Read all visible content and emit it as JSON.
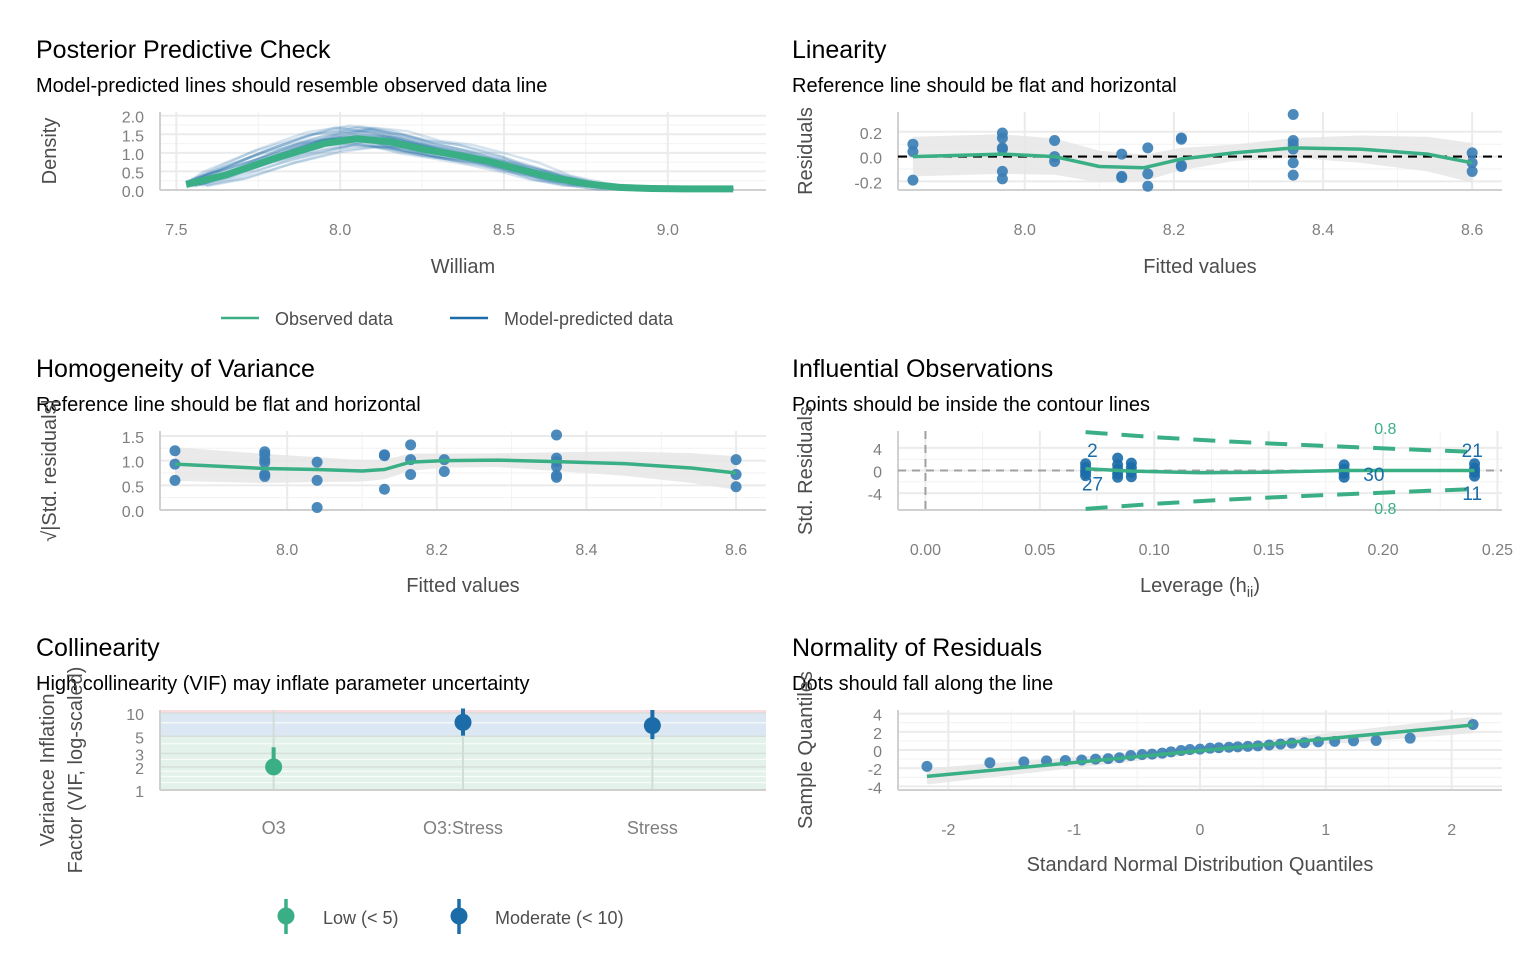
{
  "colors": {
    "observed": "#3aaf85",
    "predicted": "#1b6ca8",
    "points": "#3a7db5",
    "ribbon": "#e6e6e6",
    "grid": "#ebebeb",
    "zone_low": "#e3f2eb",
    "zone_moderate": "#dbe7f2",
    "zone_high": "#f8dcdf"
  },
  "chart_data": [
    {
      "id": "ppc",
      "type": "line",
      "title": "Posterior Predictive Check",
      "subtitle": "Model-predicted lines should resemble observed data line",
      "xlabel": "William",
      "ylabel": "Density",
      "xlim": [
        7.45,
        9.3
      ],
      "ylim": [
        0,
        2.1
      ],
      "xticks": [
        "7.5",
        "8.0",
        "8.5",
        "9.0"
      ],
      "xtick_values": [
        7.5,
        8.0,
        8.5,
        9.0
      ],
      "yticks": [
        "0.0",
        "0.5",
        "1.0",
        "1.5",
        "2.0"
      ],
      "ytick_values": [
        0,
        0.5,
        1.0,
        1.5,
        2.0
      ],
      "legend": [
        "Observed data",
        "Model-predicted data"
      ],
      "legend_position": "bottom",
      "observed": {
        "x": [
          7.53,
          7.65,
          7.8,
          7.95,
          8.05,
          8.15,
          8.25,
          8.35,
          8.45,
          8.55,
          8.65,
          8.75,
          8.85,
          8.95,
          9.05,
          9.2
        ],
        "y": [
          0.15,
          0.4,
          0.85,
          1.25,
          1.38,
          1.3,
          1.1,
          0.95,
          0.78,
          0.55,
          0.33,
          0.17,
          0.07,
          0.04,
          0.03,
          0.03
        ]
      },
      "predicted_draws": 30
    },
    {
      "id": "linearity",
      "type": "scatter",
      "title": "Linearity",
      "subtitle": "Reference line should be flat and horizontal",
      "xlabel": "Fitted values",
      "ylabel": "Residuals",
      "xlim": [
        7.83,
        8.64
      ],
      "ylim": [
        -0.27,
        0.36
      ],
      "xticks": [
        "8.0",
        "8.2",
        "8.4",
        "8.6"
      ],
      "xtick_values": [
        8.0,
        8.2,
        8.4,
        8.6
      ],
      "yticks": [
        "-0.2",
        "0.0",
        "0.2"
      ],
      "ytick_values": [
        -0.2,
        0,
        0.2
      ],
      "points": [
        [
          7.85,
          0.1
        ],
        [
          7.85,
          0.04
        ],
        [
          7.85,
          -0.19
        ],
        [
          7.97,
          0.19
        ],
        [
          7.97,
          0.15
        ],
        [
          7.97,
          0.07
        ],
        [
          7.97,
          0.06
        ],
        [
          7.97,
          -0.12
        ],
        [
          7.97,
          -0.18
        ],
        [
          8.04,
          0.13
        ],
        [
          8.04,
          0.0
        ],
        [
          8.04,
          -0.04
        ],
        [
          8.13,
          0.02
        ],
        [
          8.13,
          -0.16
        ],
        [
          8.13,
          -0.17
        ],
        [
          8.165,
          0.07
        ],
        [
          8.165,
          -0.14
        ],
        [
          8.165,
          -0.24
        ],
        [
          8.21,
          0.15
        ],
        [
          8.21,
          0.14
        ],
        [
          8.21,
          -0.07
        ],
        [
          8.21,
          -0.08
        ],
        [
          8.36,
          0.34
        ],
        [
          8.36,
          0.13
        ],
        [
          8.36,
          0.1
        ],
        [
          8.36,
          0.06
        ],
        [
          8.36,
          -0.05
        ],
        [
          8.36,
          -0.15
        ],
        [
          8.6,
          0.03
        ],
        [
          8.6,
          -0.05
        ],
        [
          8.6,
          -0.12
        ]
      ],
      "smooth": {
        "x": [
          7.85,
          7.97,
          8.04,
          8.1,
          8.16,
          8.21,
          8.28,
          8.36,
          8.45,
          8.54,
          8.6
        ],
        "y": [
          0.0,
          0.02,
          0.0,
          -0.08,
          -0.09,
          -0.02,
          0.03,
          0.07,
          0.06,
          0.02,
          -0.05
        ]
      }
    },
    {
      "id": "homogeneity",
      "type": "scatter",
      "title": "Homogeneity of Variance",
      "subtitle": "Reference line should be flat and horizontal",
      "xlabel": "Fitted values",
      "ylabel": "√|Std. residuals|",
      "xlim": [
        7.83,
        8.64
      ],
      "ylim": [
        0,
        1.6
      ],
      "xticks": [
        "8.0",
        "8.2",
        "8.4",
        "8.6"
      ],
      "xtick_values": [
        8.0,
        8.2,
        8.4,
        8.6
      ],
      "yticks": [
        "0.0",
        "0.5",
        "1.0",
        "1.5"
      ],
      "ytick_values": [
        0,
        0.5,
        1.0,
        1.5
      ],
      "points": [
        [
          7.85,
          1.2
        ],
        [
          7.85,
          0.93
        ],
        [
          7.85,
          0.6
        ],
        [
          7.97,
          1.18
        ],
        [
          7.97,
          1.12
        ],
        [
          7.97,
          1.02
        ],
        [
          7.97,
          0.96
        ],
        [
          7.97,
          0.72
        ],
        [
          7.97,
          0.68
        ],
        [
          8.04,
          0.97
        ],
        [
          8.04,
          0.6
        ],
        [
          8.04,
          0.05
        ],
        [
          8.13,
          1.12
        ],
        [
          8.13,
          1.1
        ],
        [
          8.13,
          0.42
        ],
        [
          8.165,
          1.32
        ],
        [
          8.165,
          1.02
        ],
        [
          8.165,
          0.72
        ],
        [
          8.21,
          1.02
        ],
        [
          8.21,
          0.78
        ],
        [
          8.36,
          1.52
        ],
        [
          8.36,
          1.05
        ],
        [
          8.36,
          0.98
        ],
        [
          8.36,
          0.88
        ],
        [
          8.36,
          0.7
        ],
        [
          8.36,
          0.66
        ],
        [
          8.6,
          1.02
        ],
        [
          8.6,
          0.72
        ],
        [
          8.6,
          0.47
        ]
      ],
      "smooth": {
        "x": [
          7.85,
          7.97,
          8.04,
          8.1,
          8.13,
          8.165,
          8.21,
          8.28,
          8.36,
          8.45,
          8.54,
          8.6
        ],
        "y": [
          0.93,
          0.84,
          0.82,
          0.79,
          0.82,
          0.97,
          1.0,
          1.01,
          0.98,
          0.94,
          0.85,
          0.75
        ]
      }
    },
    {
      "id": "influential",
      "type": "scatter",
      "title": "Influential Observations",
      "subtitle": "Points should be inside the contour lines",
      "xlabel": "Leverage (h",
      "xlabel_sub": "ii",
      "xlabel_end": ")",
      "ylabel": "Std. Residuals",
      "xlim": [
        -0.012,
        0.252
      ],
      "ylim": [
        -7,
        7
      ],
      "xticks": [
        "0.00",
        "0.05",
        "0.10",
        "0.15",
        "0.20",
        "0.25"
      ],
      "xtick_values": [
        0,
        0.05,
        0.1,
        0.15,
        0.2,
        0.25
      ],
      "yticks": [
        "-4",
        "0",
        "4"
      ],
      "ytick_values": [
        -4,
        0,
        4
      ],
      "contour_labels": [
        "0.8",
        "0.8"
      ],
      "point_labels": [
        {
          "label": "2",
          "x": 0.073,
          "y": 3.5
        },
        {
          "label": "27",
          "x": 0.073,
          "y": -2.5
        },
        {
          "label": "30",
          "x": 0.196,
          "y": -0.8
        },
        {
          "label": "21",
          "x": 0.239,
          "y": 3.5
        },
        {
          "label": "11",
          "x": 0.239,
          "y": -4.2
        }
      ],
      "points": [
        [
          0.07,
          1.2
        ],
        [
          0.07,
          0.5
        ],
        [
          0.07,
          -0.3
        ],
        [
          0.07,
          -0.9
        ],
        [
          0.084,
          2.2
        ],
        [
          0.084,
          1.0
        ],
        [
          0.084,
          0.2
        ],
        [
          0.084,
          -0.6
        ],
        [
          0.084,
          -1.2
        ],
        [
          0.09,
          1.3
        ],
        [
          0.09,
          0.5
        ],
        [
          0.09,
          -0.3
        ],
        [
          0.09,
          -1.1
        ],
        [
          0.183,
          1.0
        ],
        [
          0.183,
          0.2
        ],
        [
          0.183,
          -0.5
        ],
        [
          0.183,
          -1.2
        ],
        [
          0.24,
          1.2
        ],
        [
          0.24,
          0.4
        ],
        [
          0.24,
          -0.3
        ],
        [
          0.24,
          -1.0
        ]
      ],
      "smooth": {
        "x": [
          0.07,
          0.09,
          0.12,
          0.15,
          0.183,
          0.21,
          0.24
        ],
        "y": [
          0.3,
          -0.1,
          -0.4,
          -0.3,
          0.0,
          0.0,
          0.0
        ]
      },
      "contour_upper": {
        "x": [
          0.07,
          0.1,
          0.13,
          0.16,
          0.19,
          0.22,
          0.24
        ],
        "y": [
          6.8,
          5.9,
          5.2,
          4.6,
          4.1,
          3.6,
          3.3
        ]
      },
      "contour_lower": {
        "x": [
          0.07,
          0.1,
          0.13,
          0.16,
          0.19,
          0.22,
          0.24
        ],
        "y": [
          -6.8,
          -5.9,
          -5.2,
          -4.6,
          -4.1,
          -3.6,
          -3.3
        ]
      }
    },
    {
      "id": "collinearity",
      "type": "scatter",
      "title": "Collinearity",
      "subtitle": "High collinearity (VIF) may inflate parameter uncertainty",
      "xlabel": "",
      "ylabel": "Variance Inflation Factor (VIF, log-scaled)",
      "ylabel_lines": [
        "Variance Inflation",
        "Factor (VIF, log-scaled)"
      ],
      "categories": [
        "O3",
        "O3:Stress",
        "Stress"
      ],
      "yscale": "log",
      "ylim": [
        1,
        11
      ],
      "yticks": [
        "1",
        "2",
        "3",
        "5",
        "10"
      ],
      "ytick_values": [
        1,
        2,
        3,
        5,
        10
      ],
      "values": [
        2.0,
        7.6,
        6.9
      ],
      "ci_low": [
        1.6,
        5.1,
        4.6
      ],
      "ci_high": [
        3.6,
        11.5,
        11.0
      ],
      "groups": [
        "Low (< 5)",
        "Moderate (< 10)",
        "Moderate (< 10)"
      ],
      "legend": [
        "Low (< 5)",
        "Moderate (< 10)"
      ],
      "legend_position": "bottom"
    },
    {
      "id": "normality",
      "type": "scatter",
      "title": "Normality of Residuals",
      "subtitle": "Dots should fall along the line",
      "xlabel": "Standard Normal Distribution Quantiles",
      "ylabel": "Sample Quantiles",
      "xlim": [
        -2.4,
        2.4
      ],
      "ylim": [
        -4.4,
        4.4
      ],
      "xticks": [
        "-2",
        "-1",
        "0",
        "1",
        "2"
      ],
      "xtick_values": [
        -2,
        -1,
        0,
        1,
        2
      ],
      "yticks": [
        "-4",
        "-2",
        "0",
        "2",
        "4"
      ],
      "ytick_values": [
        -4,
        -2,
        0,
        2,
        4
      ],
      "points": [
        [
          -2.17,
          -1.8
        ],
        [
          -1.67,
          -1.4
        ],
        [
          -1.4,
          -1.3
        ],
        [
          -1.22,
          -1.2
        ],
        [
          -1.07,
          -1.15
        ],
        [
          -0.94,
          -1.1
        ],
        [
          -0.83,
          -1.0
        ],
        [
          -0.73,
          -0.95
        ],
        [
          -0.64,
          -0.85
        ],
        [
          -0.55,
          -0.6
        ],
        [
          -0.46,
          -0.5
        ],
        [
          -0.38,
          -0.45
        ],
        [
          -0.3,
          -0.35
        ],
        [
          -0.23,
          -0.2
        ],
        [
          -0.15,
          -0.05
        ],
        [
          -0.08,
          0.05
        ],
        [
          0.0,
          0.1
        ],
        [
          0.08,
          0.2
        ],
        [
          0.15,
          0.25
        ],
        [
          0.23,
          0.3
        ],
        [
          0.3,
          0.35
        ],
        [
          0.38,
          0.4
        ],
        [
          0.46,
          0.45
        ],
        [
          0.55,
          0.55
        ],
        [
          0.64,
          0.65
        ],
        [
          0.73,
          0.75
        ],
        [
          0.83,
          0.8
        ],
        [
          0.94,
          0.9
        ],
        [
          1.07,
          0.95
        ],
        [
          1.22,
          1.0
        ],
        [
          1.4,
          1.05
        ],
        [
          1.67,
          1.3
        ],
        [
          2.17,
          2.8
        ]
      ],
      "line": {
        "x": [
          -2.17,
          2.17
        ],
        "y": [
          -2.9,
          2.75
        ]
      }
    }
  ]
}
